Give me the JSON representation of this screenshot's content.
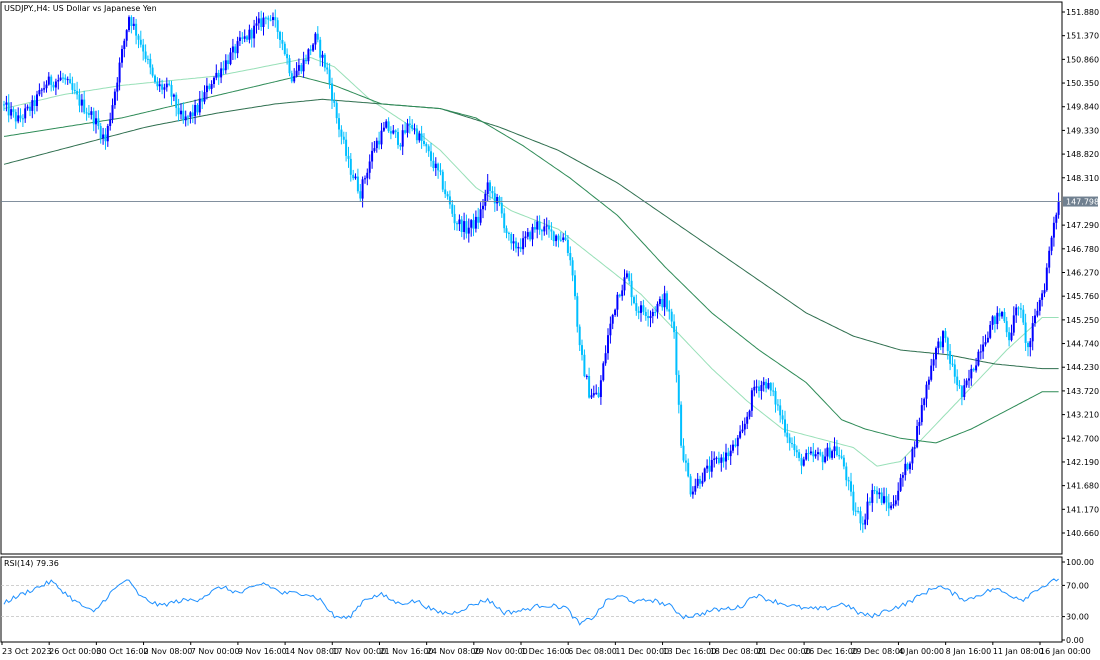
{
  "header": {
    "symbol_label": "USDJPY.,H4: US Dollar vs Japanese Yen"
  },
  "indicator": {
    "rsi_label": "RSI(14) 79.36",
    "rsi_levels": [
      "100.00",
      "70.00",
      "30.00",
      "0.00"
    ]
  },
  "colors": {
    "bull": "#0000ff",
    "bear": "#00bfff",
    "ma_fast": "#98e0b8",
    "ma_mid": "#2e8b57",
    "ma_slow": "#2f6f4f",
    "rsi": "#1e90ff",
    "last_price_badge": "#708090"
  },
  "chart_data": [
    {
      "type": "candlestick",
      "title": "USDJPY.,H4: US Dollar vs Japanese Yen",
      "x_tick_labels": [
        "23 Oct 2023",
        "26 Oct 00:00",
        "30 Oct 16:00",
        "2 Nov 08:00",
        "7 Nov 00:00",
        "9 Nov 16:00",
        "14 Nov 08:00",
        "17 Nov 00:00",
        "21 Nov 16:00",
        "24 Nov 08:00",
        "29 Nov 00:00",
        "1 Dec 16:00",
        "6 Dec 08:00",
        "11 Dec 00:00",
        "13 Dec 16:00",
        "18 Dec 08:00",
        "21 Dec 00:00",
        "26 Dec 16:00",
        "29 Dec 08:00",
        "4 Jan 00:00",
        "8 Jan 16:00",
        "11 Jan 08:00",
        "16 Jan 00:00"
      ],
      "y_tick_labels": [
        "151.880",
        "151.370",
        "150.860",
        "150.350",
        "149.840",
        "149.330",
        "148.820",
        "148.310",
        "147.290",
        "146.780",
        "146.270",
        "145.760",
        "145.250",
        "144.740",
        "144.230",
        "143.720",
        "143.210",
        "142.700",
        "142.190",
        "141.680",
        "141.170",
        "140.660"
      ],
      "ylim": [
        140.15,
        152.1
      ],
      "last_price": "147.798",
      "close_path": [
        [
          0,
          149.84
        ],
        [
          6,
          149.55
        ],
        [
          12,
          149.85
        ],
        [
          18,
          150.35
        ],
        [
          25,
          150.45
        ],
        [
          32,
          149.95
        ],
        [
          38,
          149.6
        ],
        [
          43,
          149.1
        ],
        [
          47,
          150.2
        ],
        [
          53,
          151.8
        ],
        [
          59,
          151.1
        ],
        [
          64,
          150.3
        ],
        [
          70,
          150.2
        ],
        [
          76,
          149.5
        ],
        [
          82,
          149.8
        ],
        [
          88,
          150.4
        ],
        [
          94,
          150.8
        ],
        [
          100,
          151.2
        ],
        [
          106,
          151.5
        ],
        [
          112,
          151.82
        ],
        [
          117,
          151.4
        ],
        [
          122,
          150.5
        ],
        [
          127,
          150.8
        ],
        [
          132,
          151.3
        ],
        [
          137,
          150.6
        ],
        [
          141,
          149.6
        ],
        [
          146,
          148.6
        ],
        [
          151,
          148.0
        ],
        [
          157,
          149.0
        ],
        [
          162,
          149.4
        ],
        [
          168,
          149.1
        ],
        [
          172,
          149.5
        ],
        [
          178,
          149.0
        ],
        [
          185,
          148.3
        ],
        [
          191,
          147.4
        ],
        [
          196,
          147.2
        ],
        [
          201,
          147.4
        ],
        [
          205,
          148.1
        ],
        [
          210,
          147.7
        ],
        [
          215,
          146.8
        ],
        [
          220,
          146.9
        ],
        [
          226,
          147.3
        ],
        [
          232,
          147.1
        ],
        [
          238,
          147.0
        ],
        [
          241,
          146.3
        ],
        [
          244,
          144.6
        ],
        [
          248,
          143.7
        ],
        [
          252,
          143.6
        ],
        [
          256,
          144.9
        ],
        [
          260,
          145.8
        ],
        [
          264,
          146.2
        ],
        [
          268,
          145.5
        ],
        [
          274,
          145.4
        ],
        [
          280,
          145.7
        ],
        [
          284,
          145.0
        ],
        [
          287,
          142.6
        ],
        [
          291,
          141.6
        ],
        [
          296,
          141.9
        ],
        [
          302,
          142.2
        ],
        [
          308,
          142.4
        ],
        [
          313,
          142.8
        ],
        [
          318,
          143.8
        ],
        [
          323,
          143.9
        ],
        [
          327,
          143.5
        ],
        [
          332,
          142.8
        ],
        [
          337,
          142.2
        ],
        [
          342,
          142.3
        ],
        [
          347,
          142.3
        ],
        [
          352,
          142.5
        ],
        [
          356,
          142.1
        ],
        [
          360,
          141.2
        ],
        [
          364,
          140.9
        ],
        [
          368,
          141.6
        ],
        [
          372,
          141.4
        ],
        [
          376,
          141.2
        ],
        [
          381,
          141.9
        ],
        [
          385,
          142.4
        ],
        [
          390,
          143.6
        ],
        [
          394,
          144.5
        ],
        [
          398,
          144.9
        ],
        [
          402,
          144.2
        ],
        [
          406,
          143.6
        ],
        [
          410,
          144.1
        ],
        [
          414,
          144.7
        ],
        [
          419,
          145.2
        ],
        [
          423,
          145.4
        ],
        [
          426,
          144.9
        ],
        [
          430,
          145.6
        ],
        [
          434,
          144.6
        ],
        [
          438,
          145.5
        ],
        [
          441,
          146.0
        ],
        [
          445,
          147.4
        ],
        [
          447,
          147.8
        ]
      ],
      "ma_fast": [
        [
          0,
          149.8
        ],
        [
          25,
          150.1
        ],
        [
          50,
          150.3
        ],
        [
          70,
          150.4
        ],
        [
          90,
          150.5
        ],
        [
          110,
          150.7
        ],
        [
          130,
          150.9
        ],
        [
          140,
          150.7
        ],
        [
          155,
          150.0
        ],
        [
          170,
          149.5
        ],
        [
          185,
          148.9
        ],
        [
          200,
          148.1
        ],
        [
          215,
          147.6
        ],
        [
          235,
          147.2
        ],
        [
          255,
          146.4
        ],
        [
          270,
          145.8
        ],
        [
          285,
          145.0
        ],
        [
          300,
          144.2
        ],
        [
          315,
          143.5
        ],
        [
          330,
          142.9
        ],
        [
          345,
          142.7
        ],
        [
          360,
          142.5
        ],
        [
          370,
          142.1
        ],
        [
          380,
          142.2
        ],
        [
          395,
          143.0
        ],
        [
          410,
          143.8
        ],
        [
          425,
          144.6
        ],
        [
          440,
          145.3
        ]
      ],
      "ma_mid": [
        [
          0,
          149.2
        ],
        [
          25,
          149.4
        ],
        [
          50,
          149.6
        ],
        [
          75,
          149.9
        ],
        [
          100,
          150.2
        ],
        [
          125,
          150.5
        ],
        [
          140,
          150.3
        ],
        [
          160,
          149.9
        ],
        [
          185,
          149.8
        ],
        [
          200,
          149.6
        ],
        [
          220,
          149.0
        ],
        [
          240,
          148.3
        ],
        [
          260,
          147.5
        ],
        [
          280,
          146.4
        ],
        [
          300,
          145.4
        ],
        [
          320,
          144.6
        ],
        [
          340,
          143.9
        ],
        [
          355,
          143.1
        ],
        [
          365,
          142.9
        ],
        [
          380,
          142.7
        ],
        [
          395,
          142.6
        ],
        [
          410,
          142.9
        ],
        [
          425,
          143.3
        ],
        [
          440,
          143.7
        ]
      ],
      "ma_slow": [
        [
          0,
          148.6
        ],
        [
          30,
          149.0
        ],
        [
          60,
          149.4
        ],
        [
          90,
          149.7
        ],
        [
          115,
          149.9
        ],
        [
          135,
          150.0
        ],
        [
          160,
          149.9
        ],
        [
          185,
          149.8
        ],
        [
          210,
          149.4
        ],
        [
          235,
          148.9
        ],
        [
          260,
          148.2
        ],
        [
          280,
          147.5
        ],
        [
          300,
          146.8
        ],
        [
          320,
          146.1
        ],
        [
          340,
          145.4
        ],
        [
          360,
          144.9
        ],
        [
          380,
          144.6
        ],
        [
          400,
          144.5
        ],
        [
          420,
          144.3
        ],
        [
          440,
          144.2
        ]
      ]
    },
    {
      "type": "line",
      "title": "RSI(14) 79.36",
      "ylim": [
        0,
        100
      ],
      "levels": [
        30,
        70
      ],
      "y_tick_labels": [
        "100.00",
        "70.00",
        "30.00",
        "0.00"
      ],
      "values": [
        [
          0,
          48
        ],
        [
          10,
          62
        ],
        [
          20,
          75
        ],
        [
          30,
          50
        ],
        [
          38,
          35
        ],
        [
          45,
          60
        ],
        [
          52,
          78
        ],
        [
          58,
          55
        ],
        [
          66,
          44
        ],
        [
          74,
          50
        ],
        [
          82,
          52
        ],
        [
          92,
          68
        ],
        [
          100,
          60
        ],
        [
          110,
          73
        ],
        [
          118,
          60
        ],
        [
          128,
          60
        ],
        [
          134,
          52
        ],
        [
          140,
          30
        ],
        [
          146,
          28
        ],
        [
          153,
          53
        ],
        [
          160,
          58
        ],
        [
          167,
          47
        ],
        [
          175,
          50
        ],
        [
          183,
          36
        ],
        [
          190,
          34
        ],
        [
          196,
          42
        ],
        [
          205,
          52
        ],
        [
          212,
          35
        ],
        [
          220,
          38
        ],
        [
          228,
          45
        ],
        [
          238,
          42
        ],
        [
          244,
          20
        ],
        [
          250,
          30
        ],
        [
          256,
          52
        ],
        [
          262,
          56
        ],
        [
          268,
          48
        ],
        [
          274,
          52
        ],
        [
          282,
          44
        ],
        [
          288,
          30
        ],
        [
          294,
          32
        ],
        [
          300,
          38
        ],
        [
          306,
          40
        ],
        [
          312,
          42
        ],
        [
          318,
          58
        ],
        [
          324,
          52
        ],
        [
          332,
          45
        ],
        [
          340,
          40
        ],
        [
          348,
          40
        ],
        [
          356,
          47
        ],
        [
          362,
          35
        ],
        [
          368,
          30
        ],
        [
          374,
          38
        ],
        [
          382,
          46
        ],
        [
          390,
          60
        ],
        [
          396,
          70
        ],
        [
          402,
          60
        ],
        [
          408,
          51
        ],
        [
          414,
          59
        ],
        [
          420,
          66
        ],
        [
          426,
          58
        ],
        [
          432,
          52
        ],
        [
          438,
          66
        ],
        [
          443,
          72
        ],
        [
          447,
          79.36
        ]
      ]
    }
  ]
}
